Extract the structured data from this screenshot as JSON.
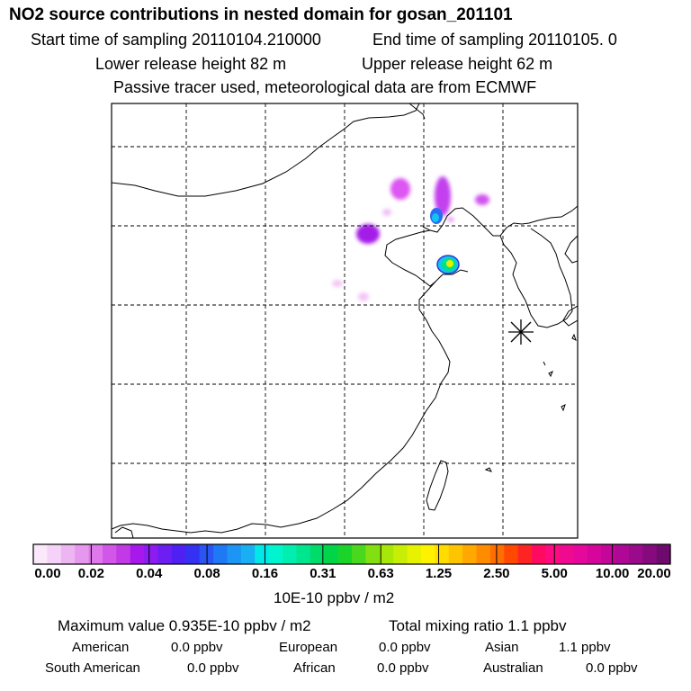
{
  "header": {
    "title": "NO2 source contributions in nested domain for gosan_201101",
    "start_label": "Start time of sampling 20110104.210000",
    "end_label": "End time of sampling 20110105.     0",
    "lower_label": "Lower release height   82 m",
    "upper_label": "Upper release height   62 m",
    "tracer_note": "Passive tracer used, meteorological data are from ECMWF"
  },
  "colorbar": {
    "tick_labels": [
      "0.00",
      "0.02",
      "0.04",
      "0.08",
      "0.16",
      "0.31",
      "0.63",
      "1.25",
      "2.50",
      "5.00",
      "10.00",
      "20.00"
    ],
    "units": "10E-10 ppbv / m2",
    "colors": [
      "#fbe9fb",
      "#f5d2f7",
      "#edb5f2",
      "#e697ee",
      "#df79eb",
      "#d257e8",
      "#c13ae6",
      "#a818ec",
      "#8c1cf0",
      "#6d1ef2",
      "#4f20f4",
      "#3431f2",
      "#2a55f2",
      "#1f78f4",
      "#1c95f4",
      "#18b0f2",
      "#00e8e8",
      "#00f5cf",
      "#00efb0",
      "#00e68e",
      "#00dc6a",
      "#00d448",
      "#1ad42a",
      "#4ad81e",
      "#82e010",
      "#a8e808",
      "#c8ee06",
      "#e6f200",
      "#fff200",
      "#ffdc00",
      "#ffc400",
      "#ffa800",
      "#ff8c00",
      "#ff6e00",
      "#ff4800",
      "#ff2424",
      "#ff0a60",
      "#ff0a80",
      "#f00a90",
      "#e6089c",
      "#d6069c",
      "#c4069a",
      "#b00896",
      "#9c0a8c",
      "#860a7e",
      "#6e0a6e"
    ]
  },
  "map": {
    "marker": "gosan-site-marker",
    "plume_colors": [
      "#dd55f2",
      "#c341ee",
      "#2a6af5",
      "#11c4ee",
      "#00e28a",
      "#e8ee00"
    ]
  },
  "summary": {
    "max_value": "Maximum value  0.935E-10 ppbv / m2",
    "total_mixing": "Total mixing ratio       1.1 ppbv",
    "regions": [
      {
        "name": "American",
        "value": "0.0 ppbv"
      },
      {
        "name": "European",
        "value": "0.0 ppbv"
      },
      {
        "name": "Asian",
        "value": "1.1 ppbv"
      },
      {
        "name": "South American",
        "value": "0.0 ppbv"
      },
      {
        "name": "African",
        "value": "0.0 ppbv"
      },
      {
        "name": "Australian",
        "value": "0.0 ppbv"
      }
    ]
  }
}
